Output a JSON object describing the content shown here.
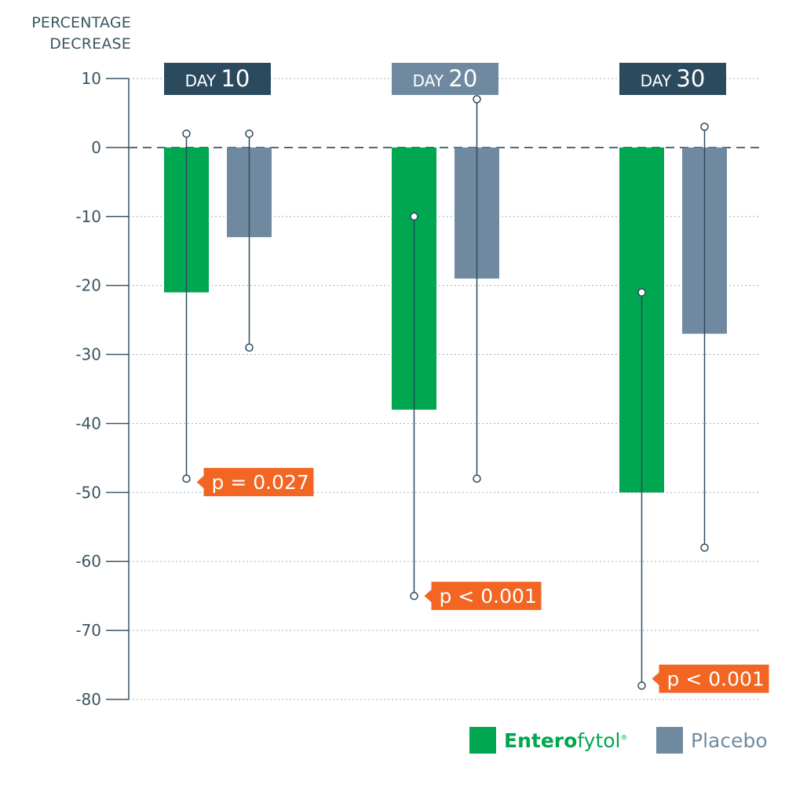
{
  "chart_data": {
    "type": "bar",
    "ylabel": [
      "PERCENTAGE",
      "DECREASE"
    ],
    "ylim": [
      -80,
      10
    ],
    "yticks": [
      10,
      0,
      -10,
      -20,
      -30,
      -40,
      -50,
      -60,
      -70,
      -80
    ],
    "grid": true,
    "legend_position": "bottom-right",
    "groups": [
      {
        "prefix": "DAY",
        "number": "10",
        "header_color": "#2c4a5e"
      },
      {
        "prefix": "DAY",
        "number": "20",
        "header_color": "#6f8aa0"
      },
      {
        "prefix": "DAY",
        "number": "30",
        "header_color": "#2c4a5e"
      }
    ],
    "series": [
      {
        "name": "Enterofytol",
        "color": "#00a650",
        "values": [
          -21,
          -38,
          -50
        ],
        "err_high": [
          2,
          -10,
          -21
        ],
        "err_low": [
          -48,
          -65,
          -78
        ]
      },
      {
        "name": "Placebo",
        "color": "#6f8aa0",
        "values": [
          -13,
          -19,
          -27
        ],
        "err_high": [
          2,
          7,
          3
        ],
        "err_low": [
          -29,
          -48,
          -58
        ]
      }
    ],
    "annotations": [
      {
        "text": "p = 0.027",
        "group": 0,
        "y": -48.5
      },
      {
        "text": "p < 0.001",
        "group": 1,
        "y": -65
      },
      {
        "text": "p < 0.001",
        "group": 2,
        "y": -77
      }
    ],
    "annotation_color": "#f26522"
  },
  "legend": {
    "ent_bold": "Entero",
    "ent_rest": "fytol",
    "ent_mark": "®",
    "placebo": "Placebo"
  }
}
